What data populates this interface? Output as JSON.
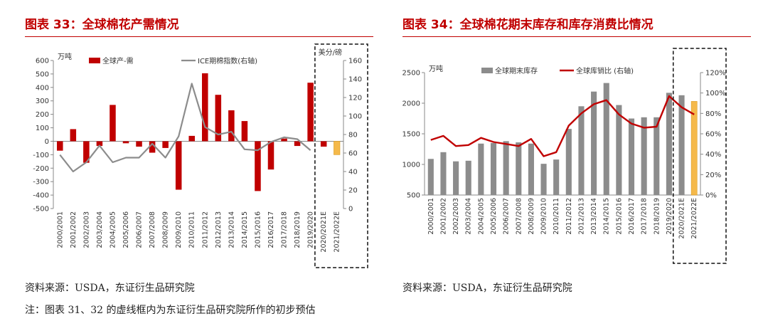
{
  "chart1": {
    "title": "图表 33：全球棉花产需情况",
    "unit_left": "万吨",
    "unit_right": "美分/磅",
    "legend_bar": "全球产-需",
    "legend_line": "ICE期棉指数(右轴)",
    "source": "资料来源：USDA，东证衍生品研究院"
  },
  "chart2": {
    "title": "图表 34：全球棉花期末库存和库存消费比情况",
    "unit_left": "万吨",
    "legend_bar": "全球期末库存",
    "legend_line": "全球库销比 (右轴)",
    "source": "资料来源：USDA，东证衍生品研究院"
  },
  "note": "注：图表 31、32 的虚线框内为东证衍生品研究院所作的初步预估",
  "colors": {
    "red": "#c00000",
    "gray": "#8c8c8c",
    "forecast": "#f5b94a"
  },
  "chart_data": [
    {
      "type": "bar",
      "categories": [
        "2000/2001",
        "2001/2002",
        "2002/2003",
        "2003/2004",
        "2004/2005",
        "2005/2006",
        "2006/2007",
        "2007/2008",
        "2008/2009",
        "2009/2010",
        "2010/2011",
        "2011/2012",
        "2012/2013",
        "2013/2014",
        "2014/2015",
        "2015/2016",
        "2016/2017",
        "2017/2018",
        "2018/2019",
        "2019/2020",
        "2020/2021E",
        "2021/2022E"
      ],
      "series": [
        {
          "name": "全球产-需",
          "type": "bar",
          "axis": "left",
          "values": [
            -70,
            90,
            -160,
            -35,
            270,
            -15,
            -40,
            -85,
            -50,
            -360,
            40,
            505,
            345,
            230,
            150,
            -370,
            -210,
            20,
            -35,
            435,
            -40,
            -100
          ]
        },
        {
          "name": "ICE期棉指数(右轴)",
          "type": "line",
          "axis": "right",
          "values": [
            58,
            40,
            50,
            68,
            50,
            55,
            55,
            70,
            55,
            78,
            135,
            88,
            80,
            83,
            64,
            63,
            72,
            77,
            75,
            63,
            null,
            null
          ]
        }
      ],
      "highlight_index": 21,
      "ylim_left": [
        -500,
        600
      ],
      "yticks_left": [
        -500,
        -400,
        -300,
        -200,
        -100,
        0,
        100,
        200,
        300,
        400,
        500,
        600
      ],
      "ylim_right": [
        0,
        160
      ],
      "yticks_right": [
        0,
        20,
        40,
        60,
        80,
        100,
        120,
        140,
        160
      ]
    },
    {
      "type": "bar",
      "categories": [
        "2000/2001",
        "2001/2002",
        "2002/2003",
        "2003/2004",
        "2004/2005",
        "2005/2006",
        "2006/2007",
        "2007/2008",
        "2008/2009",
        "2009/2010",
        "2010/2011",
        "2011/2012",
        "2012/2013",
        "2013/2014",
        "2014/2015",
        "2015/2016",
        "2016/2017",
        "2017/2018",
        "2018/2019",
        "2019/2020",
        "2020/2021E",
        "2021/2022E"
      ],
      "series": [
        {
          "name": "全球期末库存",
          "type": "bar",
          "axis": "left",
          "values": [
            1090,
            1200,
            1050,
            1060,
            1340,
            1350,
            1380,
            1360,
            1340,
            1010,
            1080,
            1580,
            1950,
            2190,
            2330,
            1970,
            1750,
            1770,
            1770,
            2170,
            2130,
            2030
          ]
        },
        {
          "name": "全球库销比 (右轴)",
          "type": "line",
          "axis": "right",
          "values": [
            54,
            58,
            48,
            49,
            56,
            52,
            50,
            48,
            55,
            38,
            42,
            68,
            80,
            89,
            93,
            79,
            70,
            66,
            67,
            97,
            86,
            79
          ]
        }
      ],
      "highlight_index": 21,
      "ylim_left": [
        500,
        2500
      ],
      "yticks_left": [
        500,
        1000,
        1500,
        2000,
        2500
      ],
      "ylim_right": [
        0,
        120
      ],
      "yticks_right": [
        "0%",
        "20%",
        "40%",
        "60%",
        "80%",
        "100%",
        "120%"
      ]
    }
  ]
}
